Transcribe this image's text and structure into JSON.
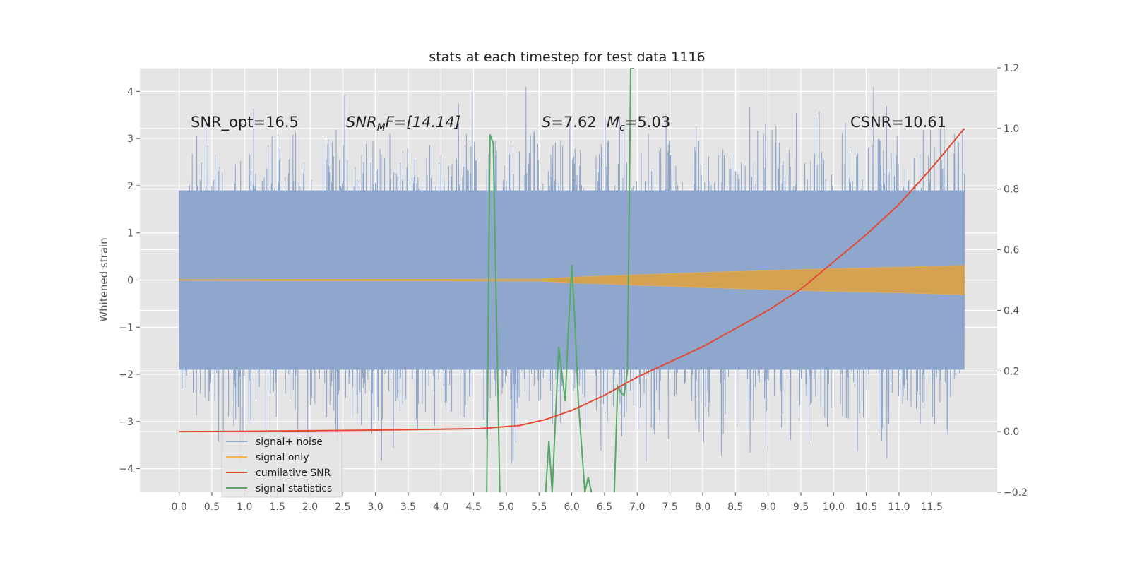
{
  "chart_data": {
    "type": "line",
    "title": "stats at each timestep for test data 1116",
    "ylabel": "Whitened strain",
    "xlim": [
      -0.6,
      12.5
    ],
    "ylim": [
      -4.5,
      4.5
    ],
    "ylim_right": [
      -0.2,
      1.2
    ],
    "x_ticks": [
      "0.0",
      "0.5",
      "1.0",
      "1.5",
      "2.0",
      "2.5",
      "3.0",
      "3.5",
      "4.0",
      "4.5",
      "5.0",
      "5.5",
      "6.0",
      "6.5",
      "7.0",
      "7.5",
      "8.0",
      "8.5",
      "9.0",
      "9.5",
      "10.0",
      "10.5",
      "11.0",
      "11.5"
    ],
    "y_ticks": [
      "4",
      "3",
      "2",
      "1",
      "0",
      "−1",
      "−2",
      "−3",
      "−4"
    ],
    "y_right_ticks": [
      "1.2",
      "1.0",
      "0.8",
      "0.6",
      "0.4",
      "0.2",
      "0.0",
      "−0.2"
    ],
    "grid": true,
    "legend_position": "lower-left",
    "series": [
      {
        "name": "signal+ noise",
        "color": "#8fa6cd",
        "axis": "left",
        "x_range": [
          0,
          12
        ],
        "core_band": [
          -1.9,
          1.9
        ],
        "envelope": [
          -3.9,
          4.1
        ]
      },
      {
        "name": "signal only",
        "color": "#d8a24a",
        "axis": "left",
        "x": [
          0,
          5.5,
          6,
          7,
          8,
          9,
          10,
          11,
          12
        ],
        "amplitude": [
          0.01,
          0.02,
          0.06,
          0.11,
          0.16,
          0.2,
          0.24,
          0.27,
          0.31
        ]
      },
      {
        "name": "cumilative SNR",
        "color": "#e24a33",
        "axis": "right",
        "x": [
          0,
          1,
          2,
          3,
          4,
          4.6,
          5.2,
          5.6,
          6.0,
          6.5,
          7.0,
          7.5,
          8.0,
          8.5,
          9.0,
          9.5,
          10.0,
          10.5,
          11.0,
          11.5,
          12.0
        ],
        "values": [
          0,
          0.001,
          0.003,
          0.005,
          0.008,
          0.01,
          0.02,
          0.04,
          0.07,
          0.12,
          0.18,
          0.23,
          0.28,
          0.34,
          0.4,
          0.47,
          0.56,
          0.65,
          0.75,
          0.87,
          1.0
        ]
      },
      {
        "name": "signal statistics",
        "color": "#55a868",
        "axis": "right",
        "x": [
          4.7,
          4.75,
          4.8,
          4.9,
          5.0,
          5.6,
          5.65,
          5.7,
          5.8,
          5.9,
          5.95,
          6.0,
          6.05,
          6.1,
          6.2,
          6.25,
          6.3,
          6.6,
          6.65,
          6.7,
          6.75,
          6.8,
          6.85,
          6.9,
          6.95
        ],
        "values": [
          -0.2,
          0.98,
          0.95,
          -0.2,
          null,
          -0.2,
          -0.03,
          -0.2,
          0.28,
          0.1,
          0.35,
          0.55,
          0.35,
          0.1,
          -0.2,
          -0.15,
          -0.2,
          null,
          -0.2,
          0.15,
          0.13,
          0.12,
          0.2,
          1.2,
          1.2
        ]
      }
    ],
    "annotations": {
      "snr_opt": "SNR_opt=16.5",
      "snr_mf_main": "SNR",
      "snr_mf_sub": "M",
      "snr_mf_rest": "F=[14.14]",
      "s_main": "S",
      "s_rest": "=7.62",
      "mc_main": "M",
      "mc_sub": "c",
      "mc_rest": "=5.03",
      "csnr": "CSNR=10.61"
    },
    "legend": [
      {
        "label": "signal+ noise",
        "color": "#8fa6cd"
      },
      {
        "label": "signal only",
        "color": "#f5b651"
      },
      {
        "label": "cumilative SNR",
        "color": "#e24a33"
      },
      {
        "label": "signal statistics",
        "color": "#55a868"
      }
    ]
  }
}
